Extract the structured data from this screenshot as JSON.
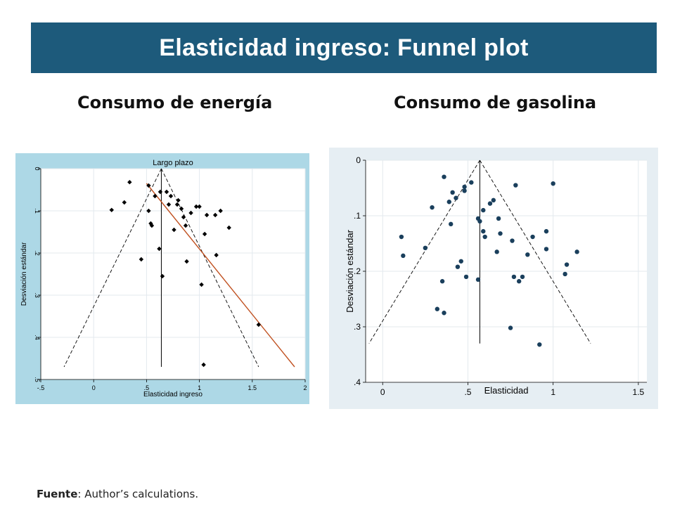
{
  "slide": {
    "title": "Elasticidad ingreso: Funnel plot",
    "left_heading": "Consumo de energía",
    "right_heading": "Consumo de gasolina",
    "source_label": "Fuente",
    "source_text": ": Author’s calculations."
  },
  "colors": {
    "title_bar": "#1d5a7b",
    "left_panel_bg": "#add8e6",
    "right_panel_bg": "#e6eef3",
    "left_points": "#000000",
    "right_points": "#1a3f5c",
    "regression_line": "#c0501f"
  },
  "chart_data": [
    {
      "type": "scatter",
      "title": "Largo plazo",
      "xlabel": "Elasticidad ingreso",
      "ylabel": "Desviación estándar",
      "xlim": [
        -0.5,
        2
      ],
      "ylim": [
        0,
        0.5
      ],
      "y_inverted": true,
      "y_tick_labels_rotated": true,
      "grid": true,
      "xticks": [
        -0.5,
        0,
        0.5,
        1,
        1.5,
        2
      ],
      "xtick_labels": [
        "-.5",
        "0",
        ".5",
        "1",
        "1.5",
        "2"
      ],
      "yticks": [
        0,
        0.1,
        0.2,
        0.3,
        0.4,
        0.5
      ],
      "ytick_labels": [
        "0",
        ".1",
        ".2",
        ".3",
        ".4",
        ".5"
      ],
      "funnel": {
        "center": 0.64,
        "apex_se": 0,
        "bottom_se": 0.47,
        "left_x": -0.28,
        "right_x": 1.56
      },
      "regression_line": {
        "start": [
          0.5,
          0.035
        ],
        "end": [
          1.9,
          0.47
        ]
      },
      "points": [
        [
          0.17,
          0.098
        ],
        [
          0.29,
          0.08
        ],
        [
          0.34,
          0.032
        ],
        [
          0.45,
          0.215
        ],
        [
          0.52,
          0.04
        ],
        [
          0.52,
          0.1
        ],
        [
          0.54,
          0.13
        ],
        [
          0.55,
          0.135
        ],
        [
          0.58,
          0.065
        ],
        [
          0.62,
          0.19
        ],
        [
          0.63,
          0.055
        ],
        [
          0.65,
          0.255
        ],
        [
          0.69,
          0.055
        ],
        [
          0.71,
          0.085
        ],
        [
          0.73,
          0.065
        ],
        [
          0.76,
          0.145
        ],
        [
          0.79,
          0.085
        ],
        [
          0.8,
          0.075
        ],
        [
          0.83,
          0.095
        ],
        [
          0.85,
          0.115
        ],
        [
          0.87,
          0.135
        ],
        [
          0.88,
          0.22
        ],
        [
          0.92,
          0.105
        ],
        [
          0.97,
          0.09
        ],
        [
          1.0,
          0.09
        ],
        [
          1.02,
          0.275
        ],
        [
          1.04,
          0.465
        ],
        [
          1.05,
          0.155
        ],
        [
          1.07,
          0.11
        ],
        [
          1.16,
          0.205
        ],
        [
          1.15,
          0.11
        ],
        [
          1.2,
          0.1
        ],
        [
          1.28,
          0.14
        ],
        [
          1.56,
          0.37
        ]
      ]
    },
    {
      "type": "scatter",
      "title": "",
      "xlabel": "Elasticidad",
      "ylabel": "Desviación estándar",
      "xlim": [
        -0.1,
        1.55
      ],
      "ylim": [
        0,
        0.4
      ],
      "y_inverted": true,
      "grid": true,
      "xticks": [
        0,
        0.5,
        1,
        1.5
      ],
      "xtick_labels": [
        "0",
        ".5",
        "1",
        "1.5"
      ],
      "yticks": [
        0,
        0.1,
        0.2,
        0.3,
        0.4
      ],
      "ytick_labels": [
        "0",
        ".1",
        ".2",
        ".3",
        ".4"
      ],
      "funnel": {
        "center": 0.57,
        "apex_se": 0,
        "bottom_se": 0.33,
        "left_x": -0.08,
        "right_x": 1.22
      },
      "points": [
        [
          0.11,
          0.138
        ],
        [
          0.12,
          0.172
        ],
        [
          0.25,
          0.158
        ],
        [
          0.29,
          0.085
        ],
        [
          0.32,
          0.268
        ],
        [
          0.35,
          0.218
        ],
        [
          0.36,
          0.03
        ],
        [
          0.36,
          0.275
        ],
        [
          0.39,
          0.075
        ],
        [
          0.4,
          0.115
        ],
        [
          0.41,
          0.058
        ],
        [
          0.43,
          0.068
        ],
        [
          0.44,
          0.192
        ],
        [
          0.46,
          0.182
        ],
        [
          0.48,
          0.048
        ],
        [
          0.48,
          0.055
        ],
        [
          0.49,
          0.21
        ],
        [
          0.52,
          0.04
        ],
        [
          0.56,
          0.105
        ],
        [
          0.56,
          0.215
        ],
        [
          0.57,
          0.11
        ],
        [
          0.59,
          0.09
        ],
        [
          0.59,
          0.128
        ],
        [
          0.6,
          0.138
        ],
        [
          0.63,
          0.078
        ],
        [
          0.65,
          0.072
        ],
        [
          0.67,
          0.165
        ],
        [
          0.68,
          0.105
        ],
        [
          0.69,
          0.132
        ],
        [
          0.75,
          0.302
        ],
        [
          0.76,
          0.145
        ],
        [
          0.77,
          0.21
        ],
        [
          0.78,
          0.045
        ],
        [
          0.8,
          0.218
        ],
        [
          0.82,
          0.21
        ],
        [
          0.85,
          0.17
        ],
        [
          0.88,
          0.138
        ],
        [
          0.92,
          0.332
        ],
        [
          0.96,
          0.128
        ],
        [
          0.96,
          0.16
        ],
        [
          1.0,
          0.042
        ],
        [
          1.07,
          0.205
        ],
        [
          1.08,
          0.188
        ],
        [
          1.14,
          0.165
        ]
      ]
    }
  ]
}
